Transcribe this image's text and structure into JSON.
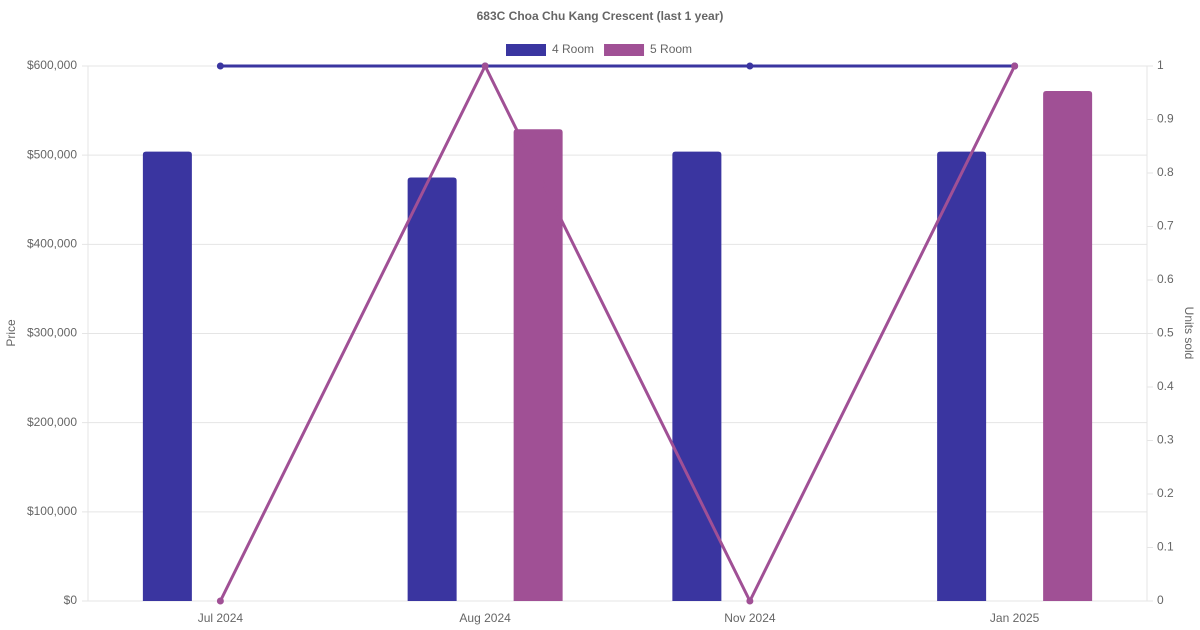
{
  "chart_data": {
    "type": "bar-line",
    "title": "683C Choa Chu Kang Crescent (last 1 year)",
    "y_label": "Price",
    "y2_label": "Units sold",
    "categories": [
      "Jul 2024",
      "Aug 2024",
      "Nov 2024",
      "Jan 2025"
    ],
    "series": [
      {
        "name": "4 Room",
        "type": "bar",
        "color": "#3a35a0",
        "values": [
          504000,
          475000,
          504000,
          504000
        ]
      },
      {
        "name": "5 Room",
        "type": "bar",
        "color": "#a05095",
        "values": [
          null,
          529000,
          null,
          572000
        ]
      },
      {
        "type": "line",
        "axis": "y2",
        "color": "#3a35a0",
        "values": [
          1,
          1,
          1,
          1
        ]
      },
      {
        "type": "line",
        "axis": "y2",
        "color": "#a05095",
        "values": [
          0,
          1,
          0,
          1
        ]
      }
    ],
    "ylim": [
      0,
      600000
    ],
    "yticks": [
      {
        "value": 0,
        "label": "$0"
      },
      {
        "value": 100000,
        "label": "$100,000"
      },
      {
        "value": 200000,
        "label": "$200,000"
      },
      {
        "value": 300000,
        "label": "$300,000"
      },
      {
        "value": 400000,
        "label": "$400,000"
      },
      {
        "value": 500000,
        "label": "$500,000"
      },
      {
        "value": 600000,
        "label": "$600,000"
      }
    ],
    "y2lim": [
      0,
      1
    ],
    "y2ticks": [
      0,
      0.1,
      0.2,
      0.3,
      0.4,
      0.5,
      0.6,
      0.7,
      0.8,
      0.9,
      1
    ],
    "grid": true,
    "legend": "top"
  }
}
